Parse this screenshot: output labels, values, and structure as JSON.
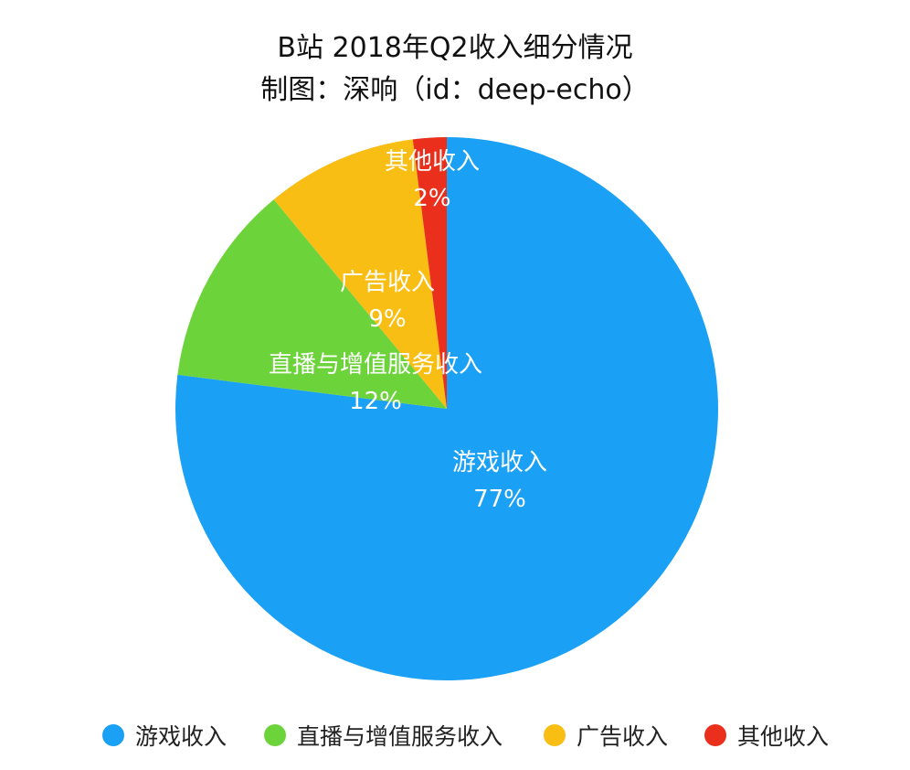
{
  "chart_data": {
    "type": "pie",
    "title": "B站 2018年Q2收入细分情况",
    "subtitle": "制图：深响（id：deep-echo）",
    "categories": [
      "游戏收入",
      "直播与增值服务收入",
      "广告收入",
      "其他收入"
    ],
    "values": [
      77,
      12,
      9,
      2
    ],
    "value_labels": [
      "77%",
      "12%",
      "9%",
      "2%"
    ],
    "colors": [
      "#1aa0f5",
      "#6dd33b",
      "#f8be13",
      "#ea2f1c"
    ],
    "start_angle": "12 o'clock",
    "direction": "clockwise",
    "legend_position": "bottom"
  }
}
